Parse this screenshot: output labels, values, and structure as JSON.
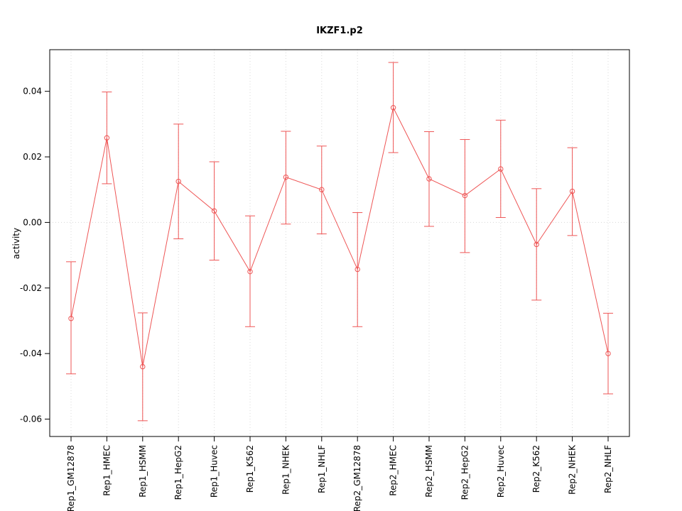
{
  "chart_data": {
    "type": "line",
    "title": "IKZF1.p2",
    "ylabel": "activity",
    "xlabel": "",
    "legend_position": "none",
    "grid": "dotted vertical line at each category; dotted horizontal line at 0",
    "line_color": "#ee5555",
    "grid_color": "#d8d8d8",
    "axis_color": "#000000",
    "marker": "open-circle",
    "error_bars": true,
    "ylim": [
      -0.0653,
      0.0527
    ],
    "yticks": [
      -0.06,
      -0.04,
      -0.02,
      0.0,
      0.02,
      0.04
    ],
    "categories": [
      "Rep1_GM12878",
      "Rep1_HMEC",
      "Rep1_HSMM",
      "Rep1_HepG2",
      "Rep1_Huvec",
      "Rep1_K562",
      "Rep1_NHEK",
      "Rep1_NHLF",
      "Rep2_GM12878",
      "Rep2_HMEC",
      "Rep2_HSMM",
      "Rep2_HepG2",
      "Rep2_Huvec",
      "Rep2_K562",
      "Rep2_NHEK",
      "Rep2_NHLF"
    ],
    "values": [
      -0.0293,
      0.0258,
      -0.044,
      0.0125,
      0.0035,
      -0.015,
      0.0138,
      0.01,
      -0.0143,
      0.035,
      0.0133,
      0.0082,
      0.0163,
      -0.0067,
      0.0095,
      -0.04
    ],
    "error_high": [
      -0.012,
      0.0398,
      -0.0276,
      0.03,
      0.0185,
      0.002,
      0.0278,
      0.0233,
      0.003,
      0.0488,
      0.0277,
      0.0253,
      0.0312,
      0.0103,
      0.0228,
      -0.0277
    ],
    "error_low": [
      -0.0462,
      0.0118,
      -0.0605,
      -0.005,
      -0.0115,
      -0.0318,
      -0.0005,
      -0.0035,
      -0.0318,
      0.0213,
      -0.0012,
      -0.0092,
      0.0015,
      -0.0237,
      -0.004,
      -0.0523
    ]
  }
}
